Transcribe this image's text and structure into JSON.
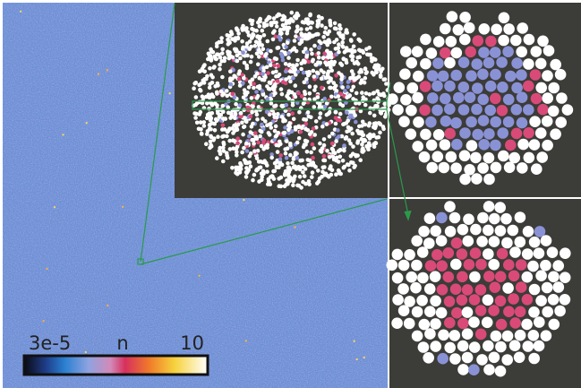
{
  "colorbar": {
    "min_label": "3e-5",
    "variable_label": "n",
    "max_label": "10"
  }
}
